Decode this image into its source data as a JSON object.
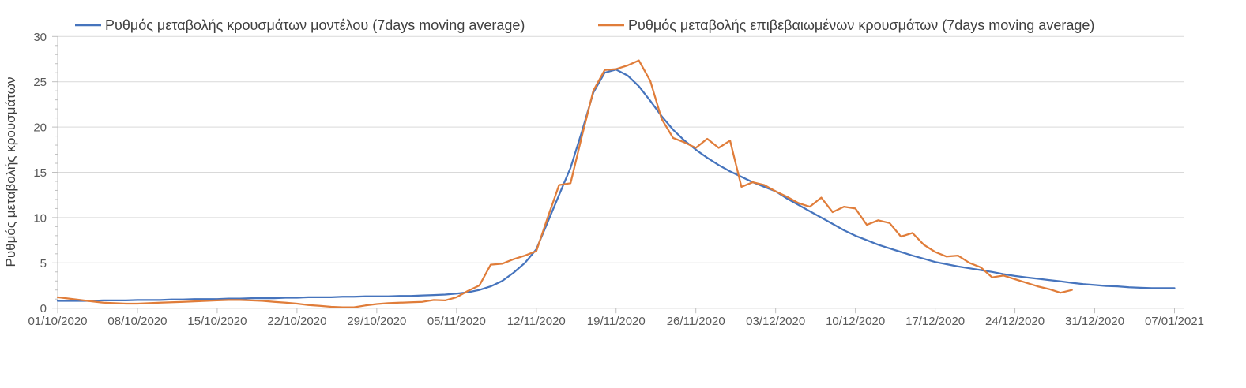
{
  "chart": {
    "y_axis_title": "Ρυθμός μεταβολής κρουσμάτων",
    "colors": {
      "model_line": "#4674BD",
      "confirmed_line": "#E07D3A",
      "gridline": "#D9D9D9",
      "axis": "#BFBFBF",
      "tick_label": "#595959",
      "legend_text": "#404040",
      "background": "#FFFFFF"
    }
  },
  "chart_data": {
    "type": "line",
    "title": "",
    "xlabel": "",
    "ylabel": "Ρυθμός μεταβολής κρουσμάτων",
    "ylim": [
      0,
      30
    ],
    "y_ticks": [
      0,
      5,
      10,
      15,
      20,
      25,
      30
    ],
    "y_minor_tick_step": 1,
    "grid": "horizontal",
    "legend_position": "top",
    "x_start_date": "01/10/2020",
    "x_tick_interval_days": 7,
    "x_tick_labels": [
      "01/10/2020",
      "08/10/2020",
      "15/10/2020",
      "22/10/2020",
      "29/10/2020",
      "05/11/2020",
      "12/11/2020",
      "19/11/2020",
      "26/11/2020",
      "03/12/2020",
      "10/12/2020",
      "17/12/2020",
      "24/12/2020",
      "31/12/2020",
      "07/01/2021"
    ],
    "x_total_days": 98,
    "series": [
      {
        "name": "Ρυθμός μεταβολής κρουσμάτων μοντέλου (7days moving average)",
        "color": "#4674BD",
        "start_day": 0,
        "values": [
          0.8,
          0.8,
          0.8,
          0.8,
          0.85,
          0.85,
          0.85,
          0.9,
          0.9,
          0.9,
          0.95,
          0.95,
          1.0,
          1.0,
          1.0,
          1.05,
          1.05,
          1.1,
          1.1,
          1.1,
          1.15,
          1.15,
          1.2,
          1.2,
          1.2,
          1.25,
          1.25,
          1.3,
          1.3,
          1.3,
          1.35,
          1.35,
          1.4,
          1.45,
          1.5,
          1.6,
          1.75,
          2.0,
          2.4,
          3.0,
          3.9,
          5.0,
          6.5,
          9.5,
          12.5,
          15.5,
          19.5,
          23.8,
          26.0,
          26.35,
          25.7,
          24.5,
          22.9,
          21.2,
          19.7,
          18.5,
          17.5,
          16.6,
          15.8,
          15.1,
          14.5,
          13.9,
          13.4,
          12.9,
          12.1,
          11.4,
          10.7,
          10.0,
          9.3,
          8.6,
          8.0,
          7.5,
          7.0,
          6.6,
          6.2,
          5.8,
          5.45,
          5.1,
          4.85,
          4.6,
          4.4,
          4.2,
          4.0,
          3.75,
          3.55,
          3.4,
          3.25,
          3.1,
          2.95,
          2.8,
          2.65,
          2.55,
          2.45,
          2.4,
          2.3,
          2.25,
          2.2,
          2.2,
          2.2
        ]
      },
      {
        "name": "Ρυθμός μεταβολής επιβεβαιωμένων κρουσμάτων (7days moving average)",
        "color": "#E07D3A",
        "start_day": 0,
        "values": [
          1.2,
          1.05,
          0.9,
          0.75,
          0.6,
          0.55,
          0.5,
          0.5,
          0.55,
          0.6,
          0.65,
          0.7,
          0.75,
          0.8,
          0.85,
          0.9,
          0.9,
          0.85,
          0.8,
          0.7,
          0.6,
          0.5,
          0.35,
          0.25,
          0.15,
          0.1,
          0.1,
          0.3,
          0.45,
          0.55,
          0.6,
          0.65,
          0.7,
          0.9,
          0.85,
          1.2,
          1.9,
          2.5,
          4.8,
          4.9,
          5.4,
          5.8,
          6.3,
          10.0,
          13.6,
          13.8,
          19.0,
          24.0,
          26.3,
          26.4,
          26.8,
          27.35,
          25.1,
          20.9,
          18.8,
          18.3,
          17.7,
          18.7,
          17.7,
          18.5,
          13.4,
          13.9,
          13.6,
          12.9,
          12.3,
          11.6,
          11.2,
          12.2,
          10.6,
          11.2,
          11.0,
          9.2,
          9.7,
          9.4,
          7.9,
          8.3,
          7.0,
          6.2,
          5.7,
          5.8,
          5.0,
          4.5,
          3.4,
          3.6,
          3.2,
          2.8,
          2.4,
          2.1,
          1.7,
          2.0
        ]
      }
    ]
  }
}
